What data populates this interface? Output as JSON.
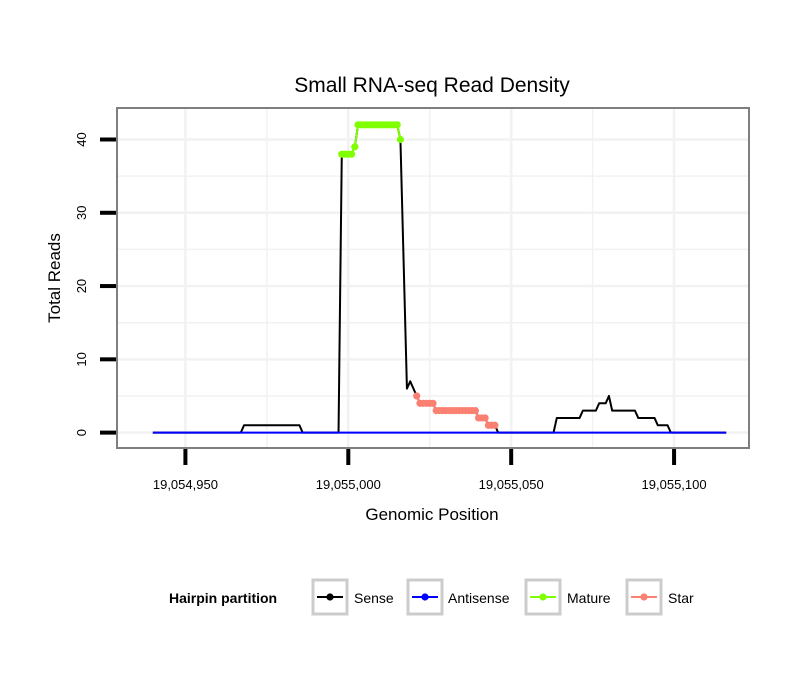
{
  "chart_data": {
    "type": "line",
    "title": "Small RNA-seq Read Density",
    "xlabel": "Genomic Position",
    "ylabel": "Total Reads",
    "xlim": [
      19054929,
      19055123
    ],
    "ylim": [
      -2.1,
      44.3
    ],
    "grid": true,
    "x_ticks": [
      19054950,
      19055000,
      19055050,
      19055100
    ],
    "x_tick_labels": [
      "19,054,950",
      "19,055,000",
      "19,055,050",
      "19,055,100"
    ],
    "y_ticks": [
      0,
      10,
      20,
      30,
      40
    ],
    "y_tick_labels": [
      "0",
      "10",
      "20",
      "30",
      "40"
    ],
    "legend": {
      "title": "Hairpin partition",
      "position": "bottom",
      "entries": [
        "Sense",
        "Antisense",
        "Mature",
        "Star"
      ]
    },
    "series": [
      {
        "name": "Sense",
        "color": "#000000",
        "markers": false,
        "points": [
          [
            19054940,
            0
          ],
          [
            19054967,
            0
          ],
          [
            19054968,
            1
          ],
          [
            19054985,
            1
          ],
          [
            19054986,
            0
          ],
          [
            19054997,
            0
          ],
          [
            19054998,
            38
          ],
          [
            19055001,
            38
          ],
          [
            19055002,
            39
          ],
          [
            19055003,
            42
          ],
          [
            19055015,
            42
          ],
          [
            19055016,
            40
          ],
          [
            19055018,
            6
          ],
          [
            19055019,
            7
          ],
          [
            19055020,
            6
          ],
          [
            19055021,
            5
          ],
          [
            19055022,
            4
          ],
          [
            19055026,
            4
          ],
          [
            19055027,
            3
          ],
          [
            19055039,
            3
          ],
          [
            19055040,
            2
          ],
          [
            19055042,
            2
          ],
          [
            19055043,
            1
          ],
          [
            19055045,
            1
          ],
          [
            19055046,
            0
          ],
          [
            19055063,
            0
          ],
          [
            19055064,
            2
          ],
          [
            19055071,
            2
          ],
          [
            19055072,
            3
          ],
          [
            19055076,
            3
          ],
          [
            19055077,
            4
          ],
          [
            19055079,
            4
          ],
          [
            19055080,
            5
          ],
          [
            19055081,
            3
          ],
          [
            19055088,
            3
          ],
          [
            19055089,
            2
          ],
          [
            19055094,
            2
          ],
          [
            19055095,
            1
          ],
          [
            19055098,
            1
          ],
          [
            19055099,
            0
          ],
          [
            19055116,
            0
          ]
        ]
      },
      {
        "name": "Antisense",
        "color": "#0000ff",
        "markers": false,
        "points": [
          [
            19054940,
            0
          ],
          [
            19055116,
            0
          ]
        ]
      },
      {
        "name": "Mature",
        "color": "#7fff00",
        "markers": true,
        "points": [
          [
            19054998,
            38
          ],
          [
            19054999,
            38
          ],
          [
            19055000,
            38
          ],
          [
            19055001,
            38
          ],
          [
            19055002,
            39
          ],
          [
            19055003,
            42
          ],
          [
            19055004,
            42
          ],
          [
            19055005,
            42
          ],
          [
            19055006,
            42
          ],
          [
            19055007,
            42
          ],
          [
            19055008,
            42
          ],
          [
            19055009,
            42
          ],
          [
            19055010,
            42
          ],
          [
            19055011,
            42
          ],
          [
            19055012,
            42
          ],
          [
            19055013,
            42
          ],
          [
            19055014,
            42
          ],
          [
            19055015,
            42
          ],
          [
            19055016,
            40
          ]
        ]
      },
      {
        "name": "Star",
        "color": "#fa8072",
        "markers": true,
        "points": [
          [
            19055021,
            5
          ],
          [
            19055022,
            4
          ],
          [
            19055023,
            4
          ],
          [
            19055024,
            4
          ],
          [
            19055025,
            4
          ],
          [
            19055026,
            4
          ],
          [
            19055027,
            3
          ],
          [
            19055028,
            3
          ],
          [
            19055029,
            3
          ],
          [
            19055030,
            3
          ],
          [
            19055031,
            3
          ],
          [
            19055032,
            3
          ],
          [
            19055033,
            3
          ],
          [
            19055034,
            3
          ],
          [
            19055035,
            3
          ],
          [
            19055036,
            3
          ],
          [
            19055037,
            3
          ],
          [
            19055038,
            3
          ],
          [
            19055039,
            3
          ],
          [
            19055040,
            2
          ],
          [
            19055041,
            2
          ],
          [
            19055042,
            2
          ],
          [
            19055043,
            1
          ],
          [
            19055044,
            1
          ],
          [
            19055045,
            1
          ]
        ]
      }
    ]
  }
}
